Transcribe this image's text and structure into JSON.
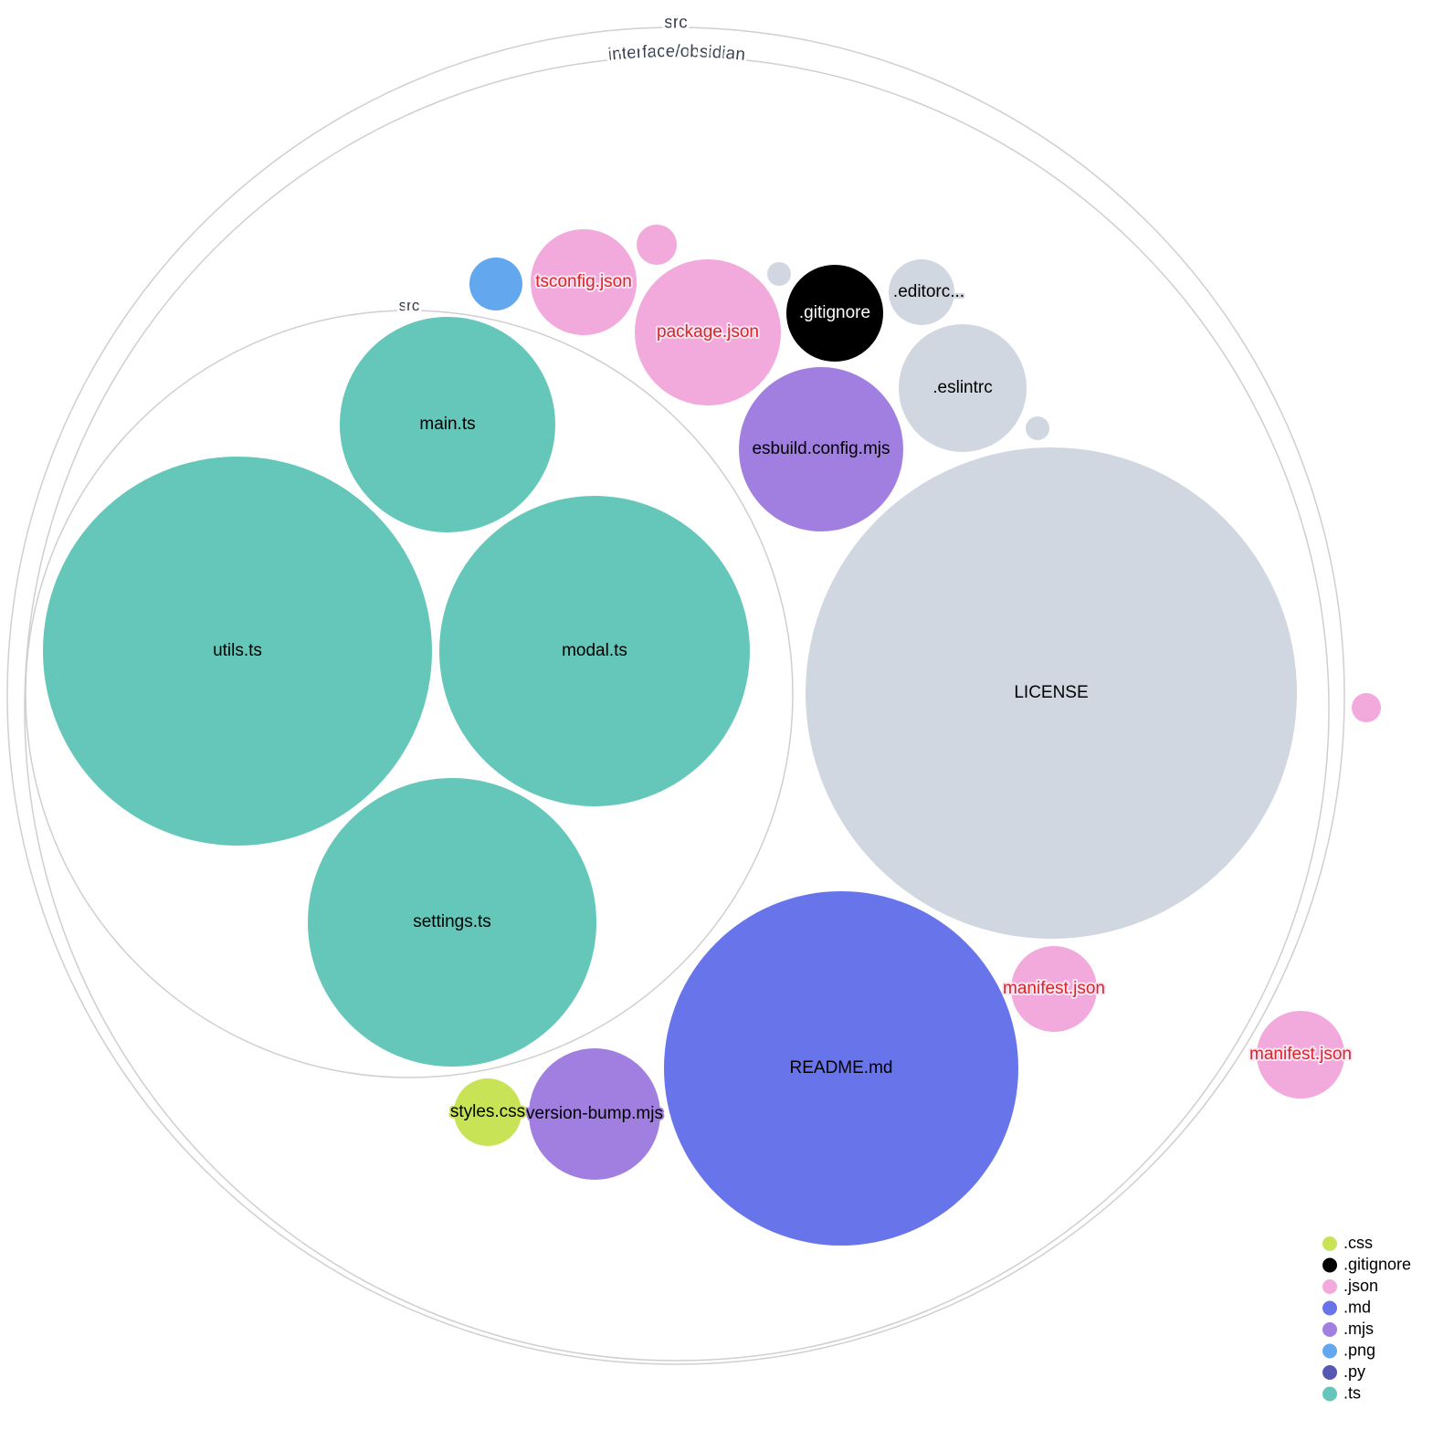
{
  "folders": [
    {
      "name": "src"
    },
    {
      "name": "interface/obsidian"
    },
    {
      "name": "src"
    }
  ],
  "colors": {
    ".css": "#c9e356",
    ".gitignore": "#000000",
    ".json": "#f2a9dc",
    ".md": "#6874ea",
    ".mjs": "#a07fe0",
    ".png": "#63a7ee",
    ".py": "#5658b3",
    ".ts": "#64c7b9",
    "other": "#d1d7e0",
    "json_label": "#d62728"
  },
  "files": [
    {
      "name": "main.ts",
      "ext": ".ts"
    },
    {
      "name": "utils.ts",
      "ext": ".ts"
    },
    {
      "name": "modal.ts",
      "ext": ".ts"
    },
    {
      "name": "settings.ts",
      "ext": ".ts"
    },
    {
      "name": "",
      "ext": ".png"
    },
    {
      "name": "tsconfig.json",
      "ext": ".json"
    },
    {
      "name": "",
      "ext": ".json"
    },
    {
      "name": "package.json",
      "ext": ".json"
    },
    {
      "name": "",
      "ext": "other"
    },
    {
      "name": ".gitignore",
      "ext": ".gitignore"
    },
    {
      "name": ".editorc...",
      "ext": "other"
    },
    {
      "name": ".eslintrc",
      "ext": "other"
    },
    {
      "name": "",
      "ext": "other"
    },
    {
      "name": "esbuild.config.mjs",
      "ext": ".mjs"
    },
    {
      "name": "LICENSE",
      "ext": "other"
    },
    {
      "name": "README.md",
      "ext": ".md"
    },
    {
      "name": "manifest.json",
      "ext": ".json"
    },
    {
      "name": "version-bump.mjs",
      "ext": ".mjs"
    },
    {
      "name": "styles.css",
      "ext": ".css"
    },
    {
      "name": "manifest.json",
      "ext": ".json"
    },
    {
      "name": "",
      "ext": ".json"
    }
  ],
  "legend": [
    ".css",
    ".gitignore",
    ".json",
    ".md",
    ".mjs",
    ".png",
    ".py",
    ".ts"
  ]
}
